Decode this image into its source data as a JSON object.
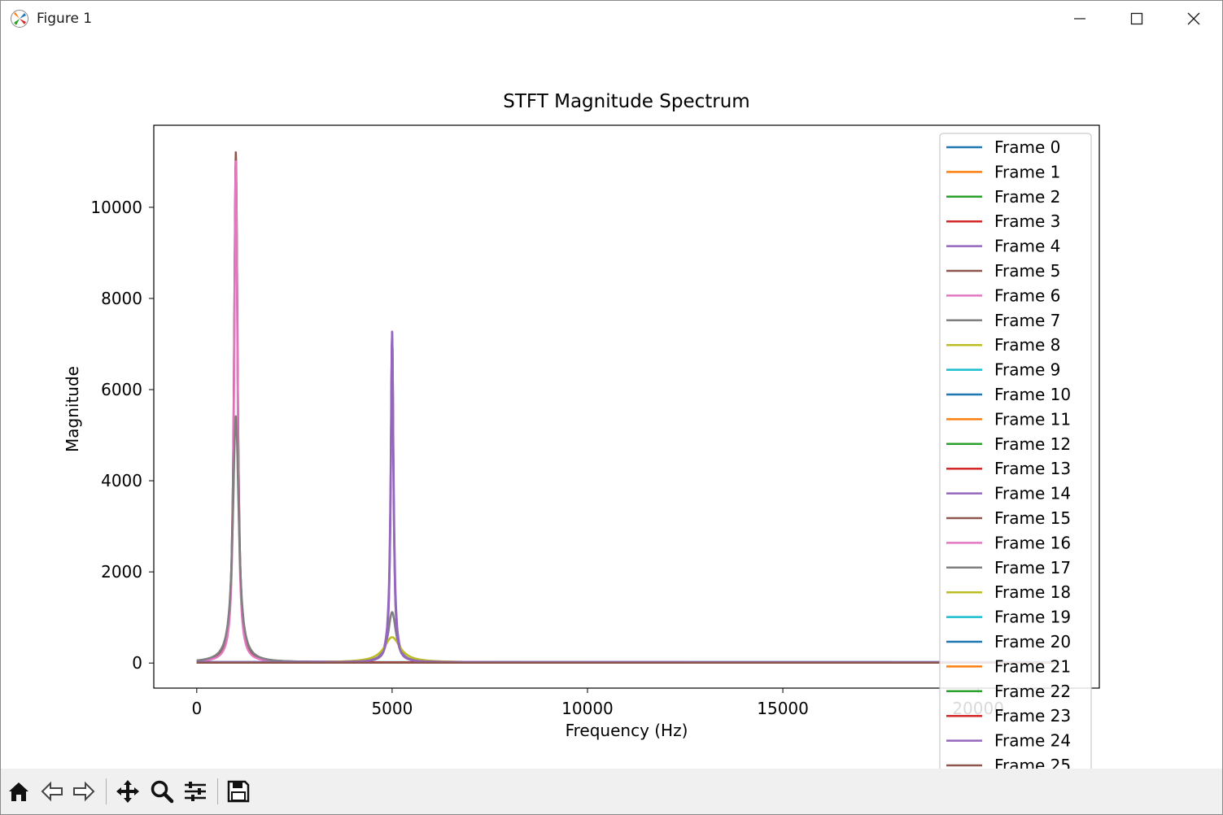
{
  "window": {
    "title": "Figure 1"
  },
  "toolbar": {
    "buttons": [
      {
        "name": "home-button",
        "icon": "home-icon"
      },
      {
        "name": "back-button",
        "icon": "back-arrow-icon"
      },
      {
        "name": "forward-button",
        "icon": "forward-arrow-icon"
      },
      {
        "name": "pan-button",
        "icon": "move-icon"
      },
      {
        "name": "zoom-button",
        "icon": "magnifier-icon"
      },
      {
        "name": "configure-subplots-button",
        "icon": "sliders-icon"
      },
      {
        "name": "save-button",
        "icon": "floppy-disk-icon"
      }
    ]
  },
  "chart_data": {
    "type": "line",
    "title": "STFT Magnitude Spectrum",
    "xlabel": "Frequency (Hz)",
    "ylabel": "Magnitude",
    "xlim": [
      -1100,
      23100
    ],
    "ylim": [
      -550,
      11800
    ],
    "xticks": [
      0,
      5000,
      10000,
      15000,
      20000
    ],
    "yticks": [
      0,
      2000,
      4000,
      6000,
      8000,
      10000
    ],
    "grid": false,
    "legend_position": "upper-right",
    "colors": [
      "#1f77b4",
      "#ff7f0e",
      "#2ca02c",
      "#d62728",
      "#9467bd",
      "#8c564b",
      "#e377c2",
      "#7f7f7f",
      "#bcbd22",
      "#17becf"
    ],
    "series": [
      {
        "name": "Frame 0",
        "peaks": []
      },
      {
        "name": "Frame 1",
        "peaks": []
      },
      {
        "name": "Frame 2",
        "peaks": []
      },
      {
        "name": "Frame 3",
        "peaks": []
      },
      {
        "name": "Frame 4",
        "peaks": [
          [
            1000,
            11100,
            55
          ],
          [
            5000,
            7250,
            45
          ]
        ]
      },
      {
        "name": "Frame 5",
        "peaks": [
          [
            1000,
            11200,
            55
          ]
        ]
      },
      {
        "name": "Frame 6",
        "peaks": [
          [
            1000,
            11000,
            50
          ]
        ]
      },
      {
        "name": "Frame 7",
        "peaks": [
          [
            1000,
            5400,
            90
          ],
          [
            5000,
            1100,
            120
          ]
        ]
      },
      {
        "name": "Frame 8",
        "peaks": [
          [
            5000,
            550,
            250
          ]
        ]
      },
      {
        "name": "Frame 9",
        "peaks": []
      },
      {
        "name": "Frame 10",
        "peaks": []
      },
      {
        "name": "Frame 11",
        "peaks": []
      },
      {
        "name": "Frame 12",
        "peaks": []
      },
      {
        "name": "Frame 13",
        "peaks": []
      },
      {
        "name": "Frame 14",
        "peaks": [
          [
            5000,
            7250,
            40
          ]
        ]
      },
      {
        "name": "Frame 15",
        "peaks": []
      },
      {
        "name": "Frame 16",
        "peaks": []
      },
      {
        "name": "Frame 17",
        "peaks": []
      },
      {
        "name": "Frame 18",
        "peaks": []
      },
      {
        "name": "Frame 19",
        "peaks": []
      },
      {
        "name": "Frame 20",
        "peaks": []
      },
      {
        "name": "Frame 21",
        "peaks": []
      },
      {
        "name": "Frame 22",
        "peaks": []
      },
      {
        "name": "Frame 23",
        "peaks": []
      },
      {
        "name": "Frame 24",
        "peaks": [
          [
            5000,
            7200,
            40
          ]
        ]
      },
      {
        "name": "Frame 25",
        "peaks": []
      }
    ]
  }
}
